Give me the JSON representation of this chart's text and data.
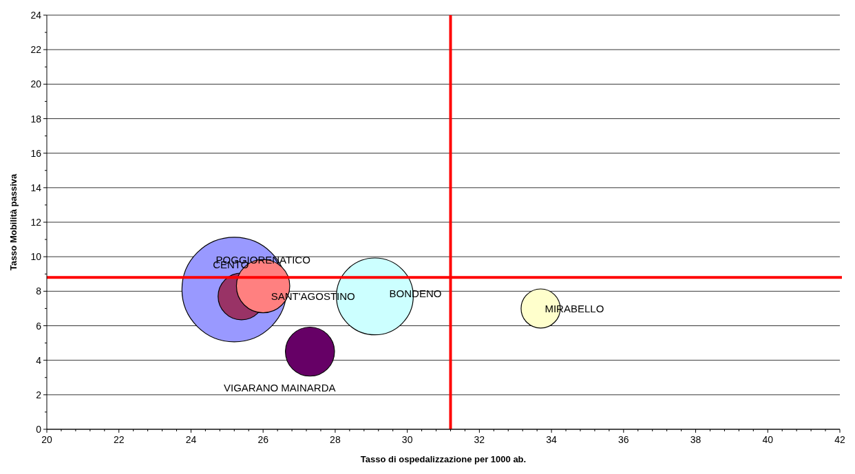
{
  "chart_data": {
    "type": "bubble",
    "xlabel": "Tasso di ospedalizzazione per 1000 ab.",
    "ylabel": "Tasso Mobilità passiva",
    "xlim": [
      20,
      42
    ],
    "xticks": [
      20,
      22,
      24,
      26,
      28,
      30,
      32,
      34,
      36,
      38,
      40,
      42
    ],
    "ylim": [
      0,
      24
    ],
    "yticks": [
      0,
      2,
      4,
      6,
      8,
      10,
      12,
      14,
      16,
      18,
      20,
      22,
      24
    ],
    "grid": "y",
    "series": [
      {
        "name": "CENTO",
        "color": "#9999ff",
        "x": [
          25.2
        ],
        "values": [
          8.1
        ],
        "sizes": [
          1
        ]
      },
      {
        "name": "SANT'AGOSTINO",
        "color": "#993366",
        "x": [
          25.4
        ],
        "values": [
          7.7
        ],
        "sizes": [
          0.2
        ]
      },
      {
        "name": "POGGIORENATICO",
        "color": "#ff8080",
        "x": [
          26.0
        ],
        "values": [
          8.3
        ],
        "sizes": [
          0.26
        ]
      },
      {
        "name": "BONDENO",
        "color": "#ccffff",
        "x": [
          29.1
        ],
        "values": [
          7.7
        ],
        "sizes": [
          0.54
        ]
      },
      {
        "name": "VIGARANO MAINARDA",
        "color": "#660066",
        "x": [
          27.3
        ],
        "values": [
          4.5
        ],
        "sizes": [
          0.22
        ]
      },
      {
        "name": "MIRABELLO",
        "color": "#ffffcc",
        "x": [
          33.7
        ],
        "values": [
          7.0
        ],
        "sizes": [
          0.14
        ]
      }
    ],
    "ref_lines": [
      {
        "axis": "x",
        "value": 31.2,
        "color": "#ff0000"
      },
      {
        "axis": "y",
        "value": 8.8,
        "color": "#ff0000"
      }
    ]
  }
}
